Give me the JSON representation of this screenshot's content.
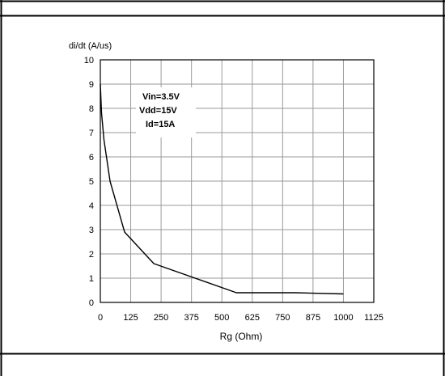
{
  "chart_data": {
    "type": "line",
    "title": "",
    "ylabel": "di/dt (A/us)",
    "xlabel": "Rg (Ohm)",
    "xlim": [
      0,
      1125
    ],
    "ylim": [
      0,
      10
    ],
    "x_ticks": [
      0,
      125,
      250,
      375,
      500,
      625,
      750,
      875,
      1000,
      1125
    ],
    "x_tick_labels": [
      "0",
      "125",
      "250",
      "375",
      "500",
      "625",
      "750",
      "875",
      "1000",
      "1125"
    ],
    "y_ticks": [
      0,
      1,
      2,
      3,
      4,
      5,
      6,
      7,
      8,
      9,
      10
    ],
    "y_tick_labels": [
      "0",
      "1",
      "2",
      "3",
      "4",
      "5",
      "6",
      "7",
      "8",
      "9",
      "10"
    ],
    "grid": true,
    "annotations": [
      "Vin=3.5V",
      "Vdd=15V",
      "Id=15A"
    ],
    "series": [
      {
        "color": "#000000",
        "x": [
          0,
          5,
          15,
          40,
          100,
          220,
          560,
          800,
          1000
        ],
        "y": [
          9.0,
          7.8,
          6.7,
          5.0,
          2.9,
          1.6,
          0.4,
          0.4,
          0.35
        ]
      }
    ]
  }
}
